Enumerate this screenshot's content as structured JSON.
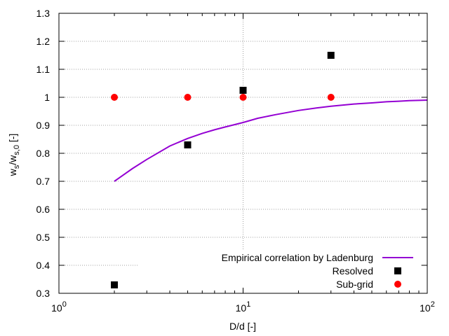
{
  "chart_data": {
    "type": "scatter",
    "title": "",
    "xlabel": "D/d [-]",
    "ylabel": {
      "base1": "w",
      "sub1": "s",
      "mid": "/w",
      "sub2": "s,0",
      "unit": " [-]"
    },
    "x_scale": "log",
    "xlim": [
      1,
      100
    ],
    "ylim": [
      0.3,
      1.3
    ],
    "grid": true,
    "x_ticks": [
      {
        "value": 1,
        "base": "10",
        "exp": "0"
      },
      {
        "value": 10,
        "base": "10",
        "exp": "1"
      },
      {
        "value": 100,
        "base": "10",
        "exp": "2"
      }
    ],
    "y_ticks": [
      {
        "value": 0.3,
        "label": "0.3"
      },
      {
        "value": 0.4,
        "label": "0.4"
      },
      {
        "value": 0.5,
        "label": "0.5"
      },
      {
        "value": 0.6,
        "label": "0.6"
      },
      {
        "value": 0.7,
        "label": "0.7"
      },
      {
        "value": 0.8,
        "label": "0.8"
      },
      {
        "value": 0.9,
        "label": "0.9"
      },
      {
        "value": 1.0,
        "label": "1"
      },
      {
        "value": 1.1,
        "label": "1.1"
      },
      {
        "value": 1.2,
        "label": "1.2"
      },
      {
        "value": 1.3,
        "label": "1.3"
      }
    ],
    "legend_position": "bottom-right",
    "series": [
      {
        "name": "Empirical correlation by Ladenburg",
        "kind": "line",
        "color": "#9400d3",
        "x": [
          2,
          2.5,
          3,
          4,
          5,
          6,
          7,
          8,
          10,
          12,
          15,
          20,
          25,
          30,
          40,
          50,
          60,
          70,
          80,
          90,
          100
        ],
        "y": [
          0.7,
          0.745,
          0.778,
          0.826,
          0.853,
          0.871,
          0.884,
          0.894,
          0.91,
          0.925,
          0.938,
          0.953,
          0.962,
          0.968,
          0.976,
          0.98,
          0.984,
          0.986,
          0.988,
          0.989,
          0.99
        ]
      },
      {
        "name": "Resolved",
        "kind": "square",
        "color": "#000000",
        "x": [
          2,
          5,
          10,
          30
        ],
        "y": [
          0.33,
          0.83,
          1.025,
          1.15
        ]
      },
      {
        "name": "Sub-grid",
        "kind": "circle",
        "color": "#ff0000",
        "x": [
          2,
          5,
          10,
          30
        ],
        "y": [
          1.0,
          1.0,
          1.0,
          1.0
        ]
      }
    ]
  }
}
